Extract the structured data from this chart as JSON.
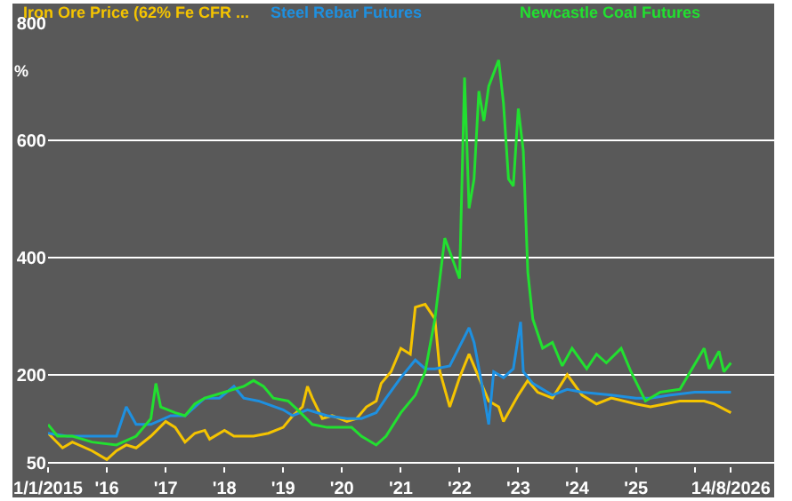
{
  "chart_data": {
    "type": "line",
    "ylabel": "%",
    "legend": "top",
    "grid": "y",
    "line_style": "solid",
    "marker": "none",
    "xlim": [
      "2015-01-01",
      "2027-05-10"
    ],
    "ylim": [
      45,
      800
    ],
    "yticks": [
      50,
      200,
      400,
      600,
      800
    ],
    "xticks": [
      {
        "value": "2015-01-01",
        "label": "1/1/2015"
      },
      {
        "value": "2016-01-01",
        "label": "'16"
      },
      {
        "value": "2017-01-01",
        "label": "'17"
      },
      {
        "value": "2018-01-01",
        "label": "'18"
      },
      {
        "value": "2019-01-01",
        "label": "'19"
      },
      {
        "value": "2020-01-01",
        "label": "'20"
      },
      {
        "value": "2021-01-01",
        "label": "'21"
      },
      {
        "value": "2022-01-01",
        "label": "'22"
      },
      {
        "value": "2023-01-01",
        "label": "'23"
      },
      {
        "value": "2024-01-01",
        "label": "'24"
      },
      {
        "value": "2025-01-01",
        "label": "'25"
      },
      {
        "value": "2026-01-01",
        "label": null
      },
      {
        "value": "2026-08-14",
        "label": "14/8/2026"
      }
    ],
    "series": [
      {
        "name": "Iron Ore Price (62% Fe CFR ...",
        "color": "#f5c400",
        "x": [
          "2015-01",
          "2015-04",
          "2015-06",
          "2015-10",
          "2016-01",
          "2016-03",
          "2016-05",
          "2016-07",
          "2016-10",
          "2017-01",
          "2017-03",
          "2017-05",
          "2017-07",
          "2017-09",
          "2017-10",
          "2018-01",
          "2018-03",
          "2018-07",
          "2018-10",
          "2019-01",
          "2019-03",
          "2019-05",
          "2019-06",
          "2019-07",
          "2019-09",
          "2019-11",
          "2020-02",
          "2020-04",
          "2020-06",
          "2020-08",
          "2020-09",
          "2020-11",
          "2021-01",
          "2021-03",
          "2021-04",
          "2021-06",
          "2021-08",
          "2021-09",
          "2021-11",
          "2022-01",
          "2022-03",
          "2022-05",
          "2022-07",
          "2022-09",
          "2022-10",
          "2023-01",
          "2023-03",
          "2023-05",
          "2023-08",
          "2023-11",
          "2024-02",
          "2024-05",
          "2024-08",
          "2025-01",
          "2025-04",
          "2025-07",
          "2025-10",
          "2026-03",
          "2026-05",
          "2026-08-14"
        ],
        "values": [
          100,
          75,
          85,
          70,
          55,
          70,
          80,
          75,
          95,
          120,
          110,
          85,
          100,
          105,
          90,
          105,
          95,
          95,
          100,
          110,
          130,
          145,
          180,
          160,
          125,
          130,
          120,
          125,
          145,
          155,
          185,
          205,
          245,
          235,
          315,
          320,
          295,
          205,
          145,
          195,
          235,
          195,
          155,
          145,
          120,
          165,
          190,
          170,
          160,
          200,
          165,
          150,
          160,
          150,
          145,
          150,
          155,
          155,
          150,
          135
        ]
      },
      {
        "name": "Steel Rebar Futures",
        "color": "#1e90e0",
        "x": [
          "2015-01",
          "2015-05",
          "2015-10",
          "2016-03",
          "2016-05",
          "2016-07",
          "2016-10",
          "2017-02",
          "2017-05",
          "2017-09",
          "2017-12",
          "2018-03",
          "2018-05",
          "2018-08",
          "2019-01",
          "2019-03",
          "2019-06",
          "2019-10",
          "2020-02",
          "2020-05",
          "2020-08",
          "2020-10",
          "2021-01",
          "2021-04",
          "2021-06",
          "2021-08",
          "2021-11",
          "2022-03",
          "2022-04",
          "2022-06",
          "2022-07",
          "2022-08",
          "2022-10",
          "2022-12",
          "2023-01-15",
          "2023-02",
          "2023-04",
          "2023-08",
          "2023-11",
          "2024-02",
          "2024-08",
          "2025-01",
          "2025-04",
          "2025-08",
          "2026-01",
          "2026-08-14"
        ],
        "values": [
          100,
          95,
          95,
          95,
          145,
          115,
          115,
          130,
          130,
          160,
          160,
          180,
          160,
          155,
          140,
          130,
          140,
          130,
          125,
          125,
          135,
          160,
          195,
          225,
          210,
          210,
          215,
          280,
          255,
          165,
          115,
          205,
          195,
          210,
          290,
          205,
          185,
          165,
          175,
          170,
          165,
          160,
          160,
          165,
          170,
          170
        ]
      },
      {
        "name": "Newcastle Coal Futures",
        "color": "#22e030",
        "x": [
          "2015-01",
          "2015-03",
          "2015-06",
          "2015-10",
          "2016-03",
          "2016-07",
          "2016-10",
          "2016-11",
          "2016-12",
          "2017-03",
          "2017-05",
          "2017-07",
          "2017-09",
          "2018-01",
          "2018-05",
          "2018-07",
          "2018-09",
          "2018-11",
          "2019-02",
          "2019-04",
          "2019-07",
          "2019-10",
          "2020-03",
          "2020-05",
          "2020-08",
          "2020-10",
          "2021-01",
          "2021-04",
          "2021-06",
          "2021-08",
          "2021-10",
          "2022-01",
          "2022-02",
          "2022-03",
          "2022-04",
          "2022-05",
          "2022-06",
          "2022-07",
          "2022-09",
          "2022-10",
          "2022-11",
          "2022-12",
          "2023-01",
          "2023-02",
          "2023-03",
          "2023-04",
          "2023-06",
          "2023-08",
          "2023-10",
          "2023-12",
          "2024-03",
          "2024-05",
          "2024-07",
          "2024-10",
          "2024-12",
          "2025-03",
          "2025-06",
          "2025-10",
          "2026-03",
          "2026-04",
          "2026-06",
          "2026-07",
          "2026-08-14"
        ],
        "values": [
          115,
          95,
          95,
          85,
          80,
          95,
          125,
          185,
          145,
          135,
          130,
          150,
          160,
          170,
          180,
          190,
          180,
          160,
          155,
          140,
          115,
          110,
          110,
          95,
          80,
          95,
          135,
          165,
          205,
          295,
          433,
          364,
          707,
          484,
          534,
          684,
          633,
          692,
          737,
          663,
          534,
          522,
          654,
          582,
          375,
          295,
          245,
          255,
          215,
          245,
          210,
          235,
          220,
          245,
          205,
          155,
          170,
          175,
          245,
          210,
          240,
          205,
          220
        ]
      }
    ]
  }
}
